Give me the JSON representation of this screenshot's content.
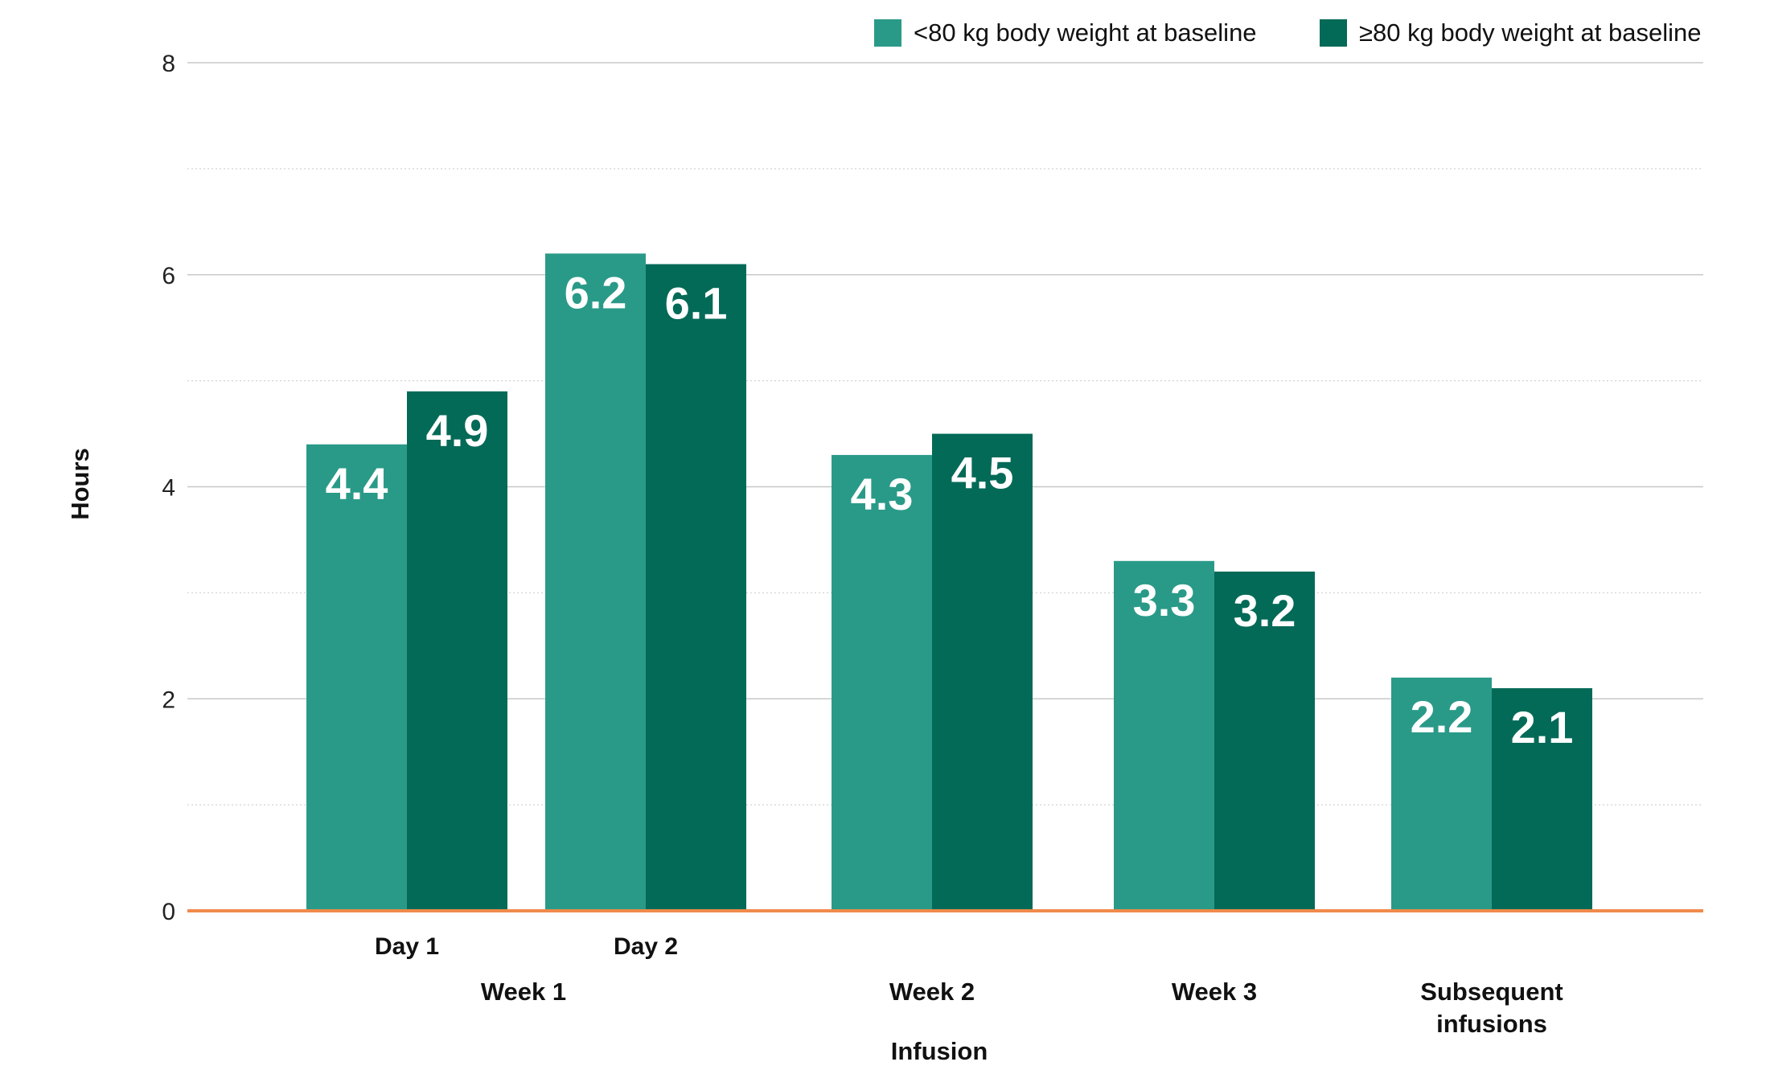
{
  "chart_data": {
    "type": "bar",
    "ylabel": "Hours",
    "xlabel": "Infusion",
    "ylim": [
      0,
      8
    ],
    "yticks": [
      0,
      2,
      4,
      6,
      8
    ],
    "grid": true,
    "legend_position": "top-right",
    "categories": [
      {
        "label": "Day 1",
        "group": "Week 1"
      },
      {
        "label": "Day 2",
        "group": "Week 1"
      },
      {
        "label": "",
        "group": "Week 2"
      },
      {
        "label": "",
        "group": "Week 3"
      },
      {
        "label": "",
        "group": "Subsequent infusions"
      }
    ],
    "groups": [
      {
        "label_lines": [
          "Week 1"
        ]
      },
      {
        "label_lines": [
          "Week 2"
        ]
      },
      {
        "label_lines": [
          "Week 3"
        ]
      },
      {
        "label_lines": [
          "Subsequent",
          "infusions"
        ]
      }
    ],
    "series": [
      {
        "name": "<80 kg body weight at baseline",
        "color": "#2a9a88",
        "values": [
          4.4,
          6.2,
          4.3,
          3.3,
          2.2
        ],
        "labels": [
          "4.4",
          "6.2",
          "4.3",
          "3.3",
          "2.2"
        ]
      },
      {
        "name": "≥80 kg body weight at baseline",
        "color": "#036a57",
        "values": [
          4.9,
          6.1,
          4.5,
          3.2,
          2.1
        ],
        "labels": [
          "4.9",
          "6.1",
          "4.5",
          "3.2",
          "2.1"
        ]
      }
    ],
    "colors": {
      "baseline": "#f08a4b",
      "gridline": "#c8c8c8"
    }
  }
}
